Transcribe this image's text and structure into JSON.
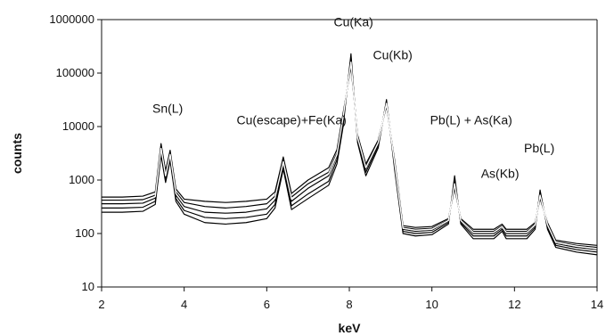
{
  "chart_data": {
    "type": "line",
    "xlabel": "keV",
    "ylabel": "counts",
    "xlim": [
      2,
      14
    ],
    "ylim": [
      10,
      1000000
    ],
    "yscale": "log",
    "grid": false,
    "legend": "none",
    "x_ticks": [
      2,
      4,
      6,
      8,
      10,
      12,
      14
    ],
    "y_ticks": [
      10,
      100,
      1000,
      10000,
      100000,
      1000000
    ],
    "x_tick_labels": [
      "2",
      "4",
      "6",
      "8",
      "10",
      "12",
      "14"
    ],
    "y_tick_labels": [
      "10",
      "100",
      "1000",
      "10000",
      "100000",
      "1000000"
    ],
    "annotations": [
      {
        "text": "Sn(L)",
        "x": 3.6,
        "y": 18000
      },
      {
        "text": "Cu(escape)+Fe(Ka)",
        "x": 6.6,
        "y": 11000
      },
      {
        "text": "Cu(Ka)",
        "x": 8.1,
        "y": 750000
      },
      {
        "text": "Cu(Kb)",
        "x": 9.05,
        "y": 180000
      },
      {
        "text": "Pb(L) + As(Ka)",
        "x": 10.95,
        "y": 11000
      },
      {
        "text": "As(Kb)",
        "x": 11.65,
        "y": 1100
      },
      {
        "text": "Pb(L)",
        "x": 12.6,
        "y": 3300
      }
    ],
    "series": [
      {
        "line_color": "#000000",
        "x": [
          2,
          2.5,
          3,
          3.3,
          3.44,
          3.55,
          3.66,
          3.8,
          4,
          4.5,
          5,
          5.5,
          6,
          6.2,
          6.4,
          6.6,
          7,
          7.5,
          7.7,
          7.85,
          8.04,
          8.2,
          8.4,
          8.7,
          8.9,
          9.1,
          9.3,
          9.6,
          10,
          10.4,
          10.55,
          10.7,
          11,
          11.5,
          11.7,
          11.8,
          12,
          12.3,
          12.5,
          12.62,
          12.8,
          13,
          13.5,
          14
        ],
        "y": [
          250,
          250,
          260,
          350,
          2900,
          900,
          2300,
          400,
          230,
          160,
          150,
          160,
          190,
          300,
          1600,
          280,
          450,
          800,
          2000,
          10000,
          230000,
          5000,
          1200,
          4000,
          32000,
          1500,
          100,
          90,
          95,
          150,
          1200,
          150,
          80,
          80,
          110,
          80,
          80,
          80,
          120,
          650,
          120,
          55,
          45,
          40
        ]
      },
      {
        "line_color": "#000000",
        "x": [
          2,
          2.5,
          3,
          3.3,
          3.44,
          3.55,
          3.66,
          3.8,
          4,
          4.5,
          5,
          5.5,
          6,
          6.2,
          6.4,
          6.6,
          7,
          7.5,
          7.7,
          7.85,
          8.04,
          8.2,
          8.4,
          8.7,
          8.9,
          9.1,
          9.3,
          9.6,
          10,
          10.4,
          10.55,
          10.7,
          11,
          11.5,
          11.7,
          11.8,
          12,
          12.3,
          12.5,
          12.62,
          12.8,
          13,
          13.5,
          14
        ],
        "y": [
          300,
          300,
          310,
          400,
          3300,
          1000,
          2600,
          450,
          270,
          200,
          190,
          200,
          230,
          350,
          1800,
          330,
          550,
          950,
          2400,
          12000,
          200000,
          5500,
          1400,
          4400,
          30000,
          1700,
          110,
          100,
          105,
          160,
          1000,
          160,
          90,
          90,
          120,
          90,
          90,
          90,
          130,
          600,
          130,
          60,
          50,
          45
        ]
      },
      {
        "line_color": "#000000",
        "x": [
          2,
          2.5,
          3,
          3.3,
          3.44,
          3.55,
          3.66,
          3.8,
          4,
          4.5,
          5,
          5.5,
          6,
          6.2,
          6.4,
          6.6,
          7,
          7.5,
          7.7,
          7.85,
          8.04,
          8.2,
          8.4,
          8.7,
          8.9,
          9.1,
          9.3,
          9.6,
          10,
          10.4,
          10.55,
          10.7,
          11,
          11.5,
          11.7,
          11.8,
          12,
          12.3,
          12.5,
          12.62,
          12.8,
          13,
          13.5,
          14
        ],
        "y": [
          360,
          360,
          370,
          460,
          3700,
          1150,
          2900,
          520,
          320,
          250,
          240,
          250,
          290,
          420,
          2100,
          400,
          700,
          1200,
          2800,
          14000,
          170000,
          6000,
          1600,
          4800,
          28000,
          1900,
          120,
          110,
          115,
          170,
          900,
          170,
          100,
          100,
          130,
          100,
          100,
          100,
          140,
          550,
          140,
          65,
          55,
          50
        ]
      },
      {
        "line_color": "#000000",
        "x": [
          2,
          2.5,
          3,
          3.3,
          3.44,
          3.55,
          3.66,
          3.8,
          4,
          4.5,
          5,
          5.5,
          6,
          6.2,
          6.4,
          6.6,
          7,
          7.5,
          7.7,
          7.85,
          8.04,
          8.2,
          8.4,
          8.7,
          8.9,
          9.1,
          9.3,
          9.6,
          10,
          10.4,
          10.55,
          10.7,
          11,
          11.5,
          11.7,
          11.8,
          12,
          12.3,
          12.5,
          12.62,
          12.8,
          13,
          13.5,
          14
        ],
        "y": [
          420,
          420,
          430,
          520,
          4200,
          1300,
          3200,
          600,
          380,
          320,
          300,
          320,
          360,
          500,
          2400,
          480,
          850,
          1400,
          3200,
          16000,
          150000,
          6500,
          1800,
          5200,
          26000,
          2100,
          130,
          120,
          125,
          180,
          800,
          180,
          110,
          110,
          140,
          110,
          110,
          110,
          150,
          500,
          150,
          70,
          60,
          55
        ]
      },
      {
        "line_color": "#000000",
        "x": [
          2,
          2.5,
          3,
          3.3,
          3.44,
          3.55,
          3.66,
          3.8,
          4,
          4.5,
          5,
          5.5,
          6,
          6.2,
          6.4,
          6.6,
          7,
          7.5,
          7.7,
          7.85,
          8.04,
          8.2,
          8.4,
          8.7,
          8.9,
          9.1,
          9.3,
          9.6,
          10,
          10.4,
          10.55,
          10.7,
          11,
          11.5,
          11.7,
          11.8,
          12,
          12.3,
          12.5,
          12.62,
          12.8,
          13,
          13.5,
          14
        ],
        "y": [
          480,
          480,
          500,
          600,
          4800,
          1500,
          3600,
          680,
          440,
          400,
          380,
          400,
          440,
          600,
          2700,
          560,
          1000,
          1700,
          3700,
          18000,
          130000,
          7000,
          2000,
          5600,
          24000,
          2300,
          140,
          130,
          135,
          190,
          700,
          190,
          120,
          120,
          150,
          120,
          120,
          120,
          160,
          450,
          160,
          75,
          65,
          60
        ]
      },
      {
        "line_color": "#ffffff",
        "x": [
          2,
          2.5,
          3,
          3.3,
          3.44,
          3.55,
          3.66,
          3.8,
          4,
          4.5,
          5,
          5.5,
          6,
          6.2,
          6.4,
          6.6,
          7,
          7.5,
          7.7,
          7.85,
          8.04,
          8.2,
          8.4,
          8.7,
          8.9,
          9.1,
          9.3,
          9.6,
          10,
          10.4,
          10.55,
          10.7,
          11,
          11.5,
          11.7,
          11.8,
          12,
          12.3,
          12.5,
          12.62,
          12.8,
          13,
          13.5,
          14
        ],
        "y": [
          390,
          390,
          400,
          490,
          3900,
          1200,
          3000,
          560,
          350,
          280,
          270,
          280,
          320,
          460,
          2200,
          440,
          780,
          1300,
          3000,
          15000,
          160000,
          6200,
          1700,
          5000,
          27000,
          2000,
          125,
          115,
          120,
          175,
          850,
          175,
          105,
          105,
          135,
          105,
          105,
          105,
          145,
          520,
          145,
          68,
          58,
          52
        ]
      }
    ]
  }
}
